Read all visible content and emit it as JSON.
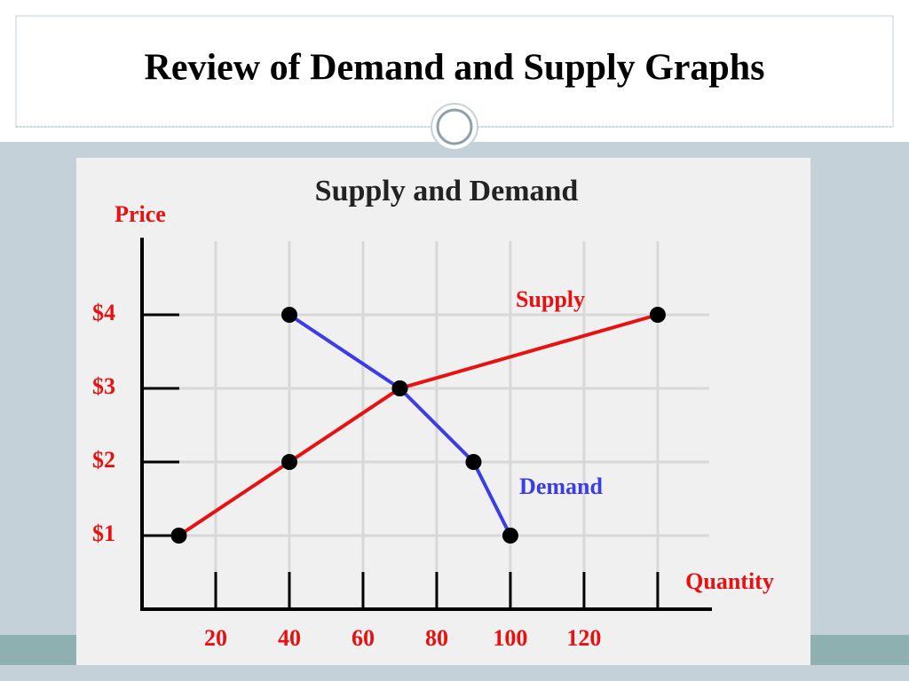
{
  "slide_title": "Review of Demand and Supply Graphs",
  "chart_data": {
    "type": "line",
    "title": "Supply and Demand",
    "x_label": "Quantity",
    "y_label": "Price",
    "xlim": [
      0,
      154
    ],
    "ylim": [
      0,
      5
    ],
    "xticks": [
      20,
      40,
      60,
      80,
      100,
      120,
      {
        "value": 140,
        "label": null
      }
    ],
    "yticks": [
      {
        "value": 1,
        "label": "$1"
      },
      {
        "value": 2,
        "label": "$2"
      },
      {
        "value": 3,
        "label": "$3"
      },
      {
        "value": 4,
        "label": "$4"
      }
    ],
    "grid": true,
    "series": [
      {
        "name": "Supply",
        "color": "#e81010",
        "x": [
          10,
          40,
          70,
          140
        ],
        "values": [
          1,
          2,
          3,
          4
        ]
      },
      {
        "name": "Demand",
        "color": "#3b3be8",
        "x": [
          40,
          70,
          90,
          100
        ],
        "values": [
          4,
          3,
          2,
          1
        ]
      }
    ]
  }
}
